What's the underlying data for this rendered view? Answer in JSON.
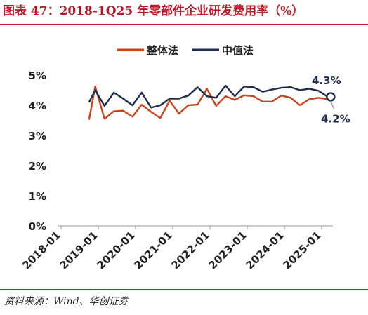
{
  "header": {
    "title": "图表 47：2018-1Q25 年零部件企业研发费用率（%）"
  },
  "footer": {
    "source": "资料来源：Wind、华创证券"
  },
  "chart_data": {
    "type": "line",
    "title": "图表 47：2018-1Q25 年零部件企业研发费用率（%）",
    "xlabel": "",
    "ylabel": "",
    "ylim": [
      0,
      5
    ],
    "yticks": [
      "0%",
      "1%",
      "2%",
      "3%",
      "4%",
      "5%"
    ],
    "xticks": [
      "2018-01",
      "2019-01",
      "2020-01",
      "2021-01",
      "2022-01",
      "2023-01",
      "2024-01",
      "2025-01"
    ],
    "grid": false,
    "legend": "top-center",
    "x": [
      "2018-10",
      "2018-12",
      "2019-03",
      "2019-06",
      "2019-09",
      "2019-12",
      "2020-03",
      "2020-06",
      "2020-09",
      "2020-12",
      "2021-03",
      "2021-06",
      "2021-09",
      "2021-12",
      "2022-03",
      "2022-06",
      "2022-09",
      "2022-12",
      "2023-03",
      "2023-06",
      "2023-09",
      "2023-12",
      "2024-03",
      "2024-06",
      "2024-09",
      "2024-12",
      "2025-03"
    ],
    "series": [
      {
        "name": "整体法",
        "color": "#c8441c",
        "values": [
          3.52,
          4.62,
          3.55,
          3.8,
          3.82,
          3.62,
          4.02,
          3.78,
          3.58,
          4.15,
          3.72,
          4.0,
          4.02,
          4.55,
          3.98,
          4.3,
          4.18,
          4.33,
          4.3,
          4.12,
          4.12,
          4.32,
          4.25,
          4.0,
          4.2,
          4.25,
          4.2
        ]
      },
      {
        "name": "中值法",
        "color": "#1f2d4b",
        "values": [
          4.1,
          4.5,
          3.98,
          4.42,
          4.22,
          4.0,
          4.42,
          3.92,
          4.0,
          4.22,
          4.22,
          4.32,
          4.6,
          4.3,
          4.25,
          4.65,
          4.3,
          4.62,
          4.6,
          4.45,
          4.52,
          4.58,
          4.6,
          4.5,
          4.55,
          4.48,
          4.28
        ]
      }
    ],
    "annotations": [
      "4.3%",
      "4.2%"
    ]
  }
}
